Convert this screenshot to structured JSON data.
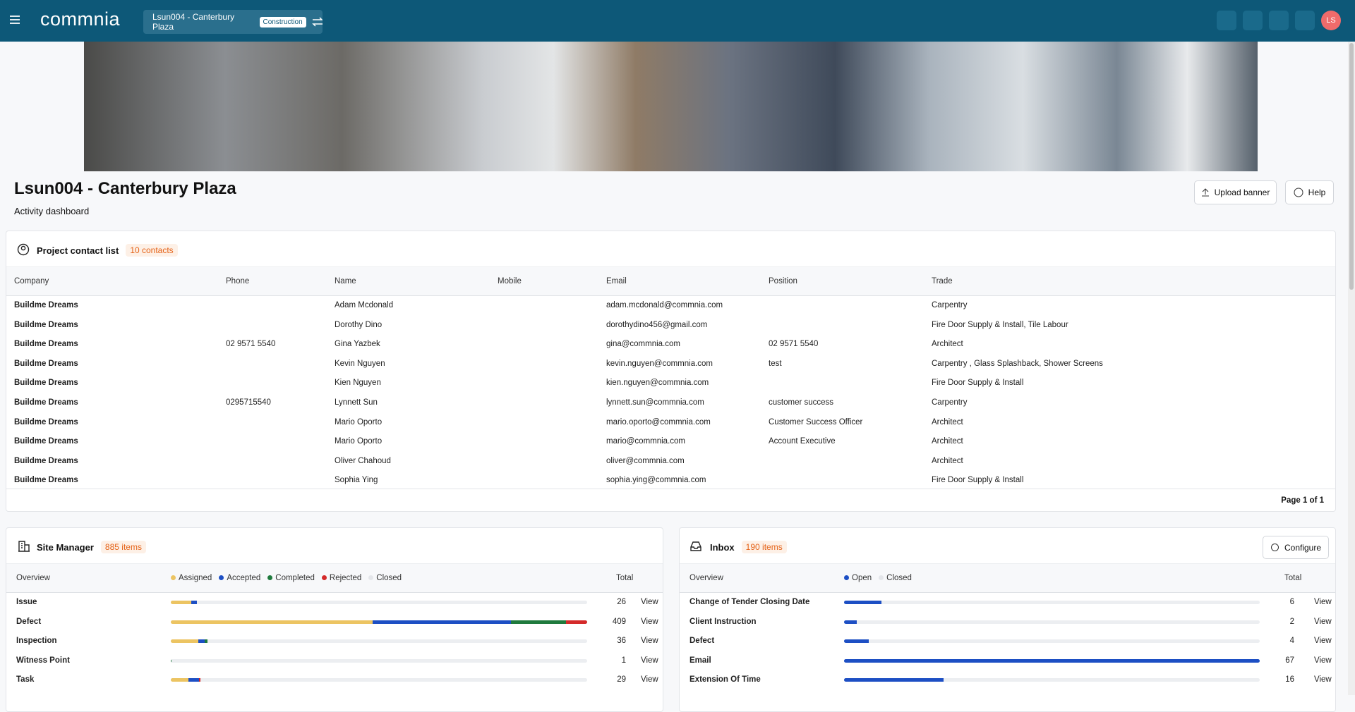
{
  "header": {
    "logo": "commnia",
    "project": "Lsun004 - Canterbury Plaza",
    "badge": "Construction",
    "avatar": "LS"
  },
  "page": {
    "title": "Lsun004 - Canterbury Plaza",
    "subtitle": "Activity dashboard",
    "upload_button": "Upload banner",
    "help_button": "Help"
  },
  "contacts": {
    "title": "Project contact list",
    "count": "10 contacts",
    "columns": [
      "Company",
      "Phone",
      "Name",
      "Mobile",
      "Email",
      "Position",
      "Trade"
    ],
    "rows": [
      {
        "company": "Buildme Dreams",
        "name": "Adam Mcdonald",
        "email": "adam.mcdonald@commnia.com",
        "trade": "Carpentry"
      },
      {
        "company": "Buildme Dreams",
        "name": "Dorothy Dino",
        "email": "dorothydino456@gmail.com",
        "trade": "Fire Door Supply & Install, Tile Labour"
      },
      {
        "company": "Buildme Dreams",
        "phone": "02 9571 5540",
        "name": "Gina Yazbek",
        "email": "gina@commnia.com",
        "position": "02 9571 5540",
        "trade": "Architect"
      },
      {
        "company": "Buildme Dreams",
        "name": "Kevin Nguyen",
        "email": "kevin.nguyen@commnia.com",
        "position": "test",
        "trade": "Carpentry , Glass Splashback, Shower Screens"
      },
      {
        "company": "Buildme Dreams",
        "name": "Kien Nguyen",
        "email": "kien.nguyen@commnia.com",
        "trade": "Fire Door Supply & Install"
      },
      {
        "company": "Buildme Dreams",
        "phone": "0295715540",
        "name": "Lynnett Sun",
        "email": "lynnett.sun@commnia.com",
        "position": "customer success",
        "trade": "Carpentry"
      },
      {
        "company": "Buildme Dreams",
        "name": "Mario Oporto",
        "email": "mario.oporto@commnia.com",
        "position": "Customer Success Officer",
        "trade": "Architect"
      },
      {
        "company": "Buildme Dreams",
        "name": "Mario Oporto",
        "email": "mario@commnia.com",
        "position": "Account Executive",
        "trade": "Architect"
      },
      {
        "company": "Buildme Dreams",
        "name": "Oliver Chahoud",
        "email": "oliver@commnia.com",
        "trade": "Architect"
      },
      {
        "company": "Buildme Dreams",
        "name": "Sophia Ying",
        "email": "sophia.ying@commnia.com",
        "trade": "Fire Door Supply & Install"
      }
    ],
    "footer": "Page 1 of 1"
  },
  "site_manager": {
    "title": "Site Manager",
    "count": "885 items",
    "overview_label": "Overview",
    "total_label": "Total",
    "action": "View",
    "legend": [
      {
        "name": "Assigned",
        "color": "#ecc462"
      },
      {
        "name": "Accepted",
        "color": "#1d4fc4"
      },
      {
        "name": "Completed",
        "color": "#1f7a3d"
      },
      {
        "name": "Rejected",
        "color": "#d42a2a"
      },
      {
        "name": "Closed",
        "color": "#e4e6ea"
      }
    ],
    "rows": [
      {
        "label": "Issue",
        "values": [
          20,
          6,
          0,
          0,
          0
        ],
        "total": 26
      },
      {
        "label": "Defect",
        "values": [
          198,
          136,
          54,
          21,
          0
        ],
        "total": 409
      },
      {
        "label": "Inspection",
        "values": [
          27,
          6,
          3,
          0,
          0
        ],
        "total": 36
      },
      {
        "label": "Witness Point",
        "values": [
          0,
          0,
          1,
          0,
          0
        ],
        "total": 1
      },
      {
        "label": "Task",
        "values": [
          17,
          11,
          0,
          1,
          0
        ],
        "total": 29
      }
    ]
  },
  "inbox": {
    "title": "Inbox",
    "count": "190 items",
    "configure": "Configure",
    "overview_label": "Overview",
    "total_label": "Total",
    "action": "View",
    "legend": [
      {
        "name": "Open",
        "color": "#1d4fc4"
      },
      {
        "name": "Closed",
        "color": "#e4e6ea"
      }
    ],
    "rows": [
      {
        "label": "Change of Tender Closing Date",
        "values": [
          6,
          0
        ],
        "total": 6
      },
      {
        "label": "Client Instruction",
        "values": [
          2,
          0
        ],
        "total": 2
      },
      {
        "label": "Defect",
        "values": [
          4,
          0
        ],
        "total": 4
      },
      {
        "label": "Email",
        "values": [
          67,
          0
        ],
        "total": 67
      },
      {
        "label": "Extension Of Time",
        "values": [
          16,
          0
        ],
        "total": 16
      }
    ]
  }
}
